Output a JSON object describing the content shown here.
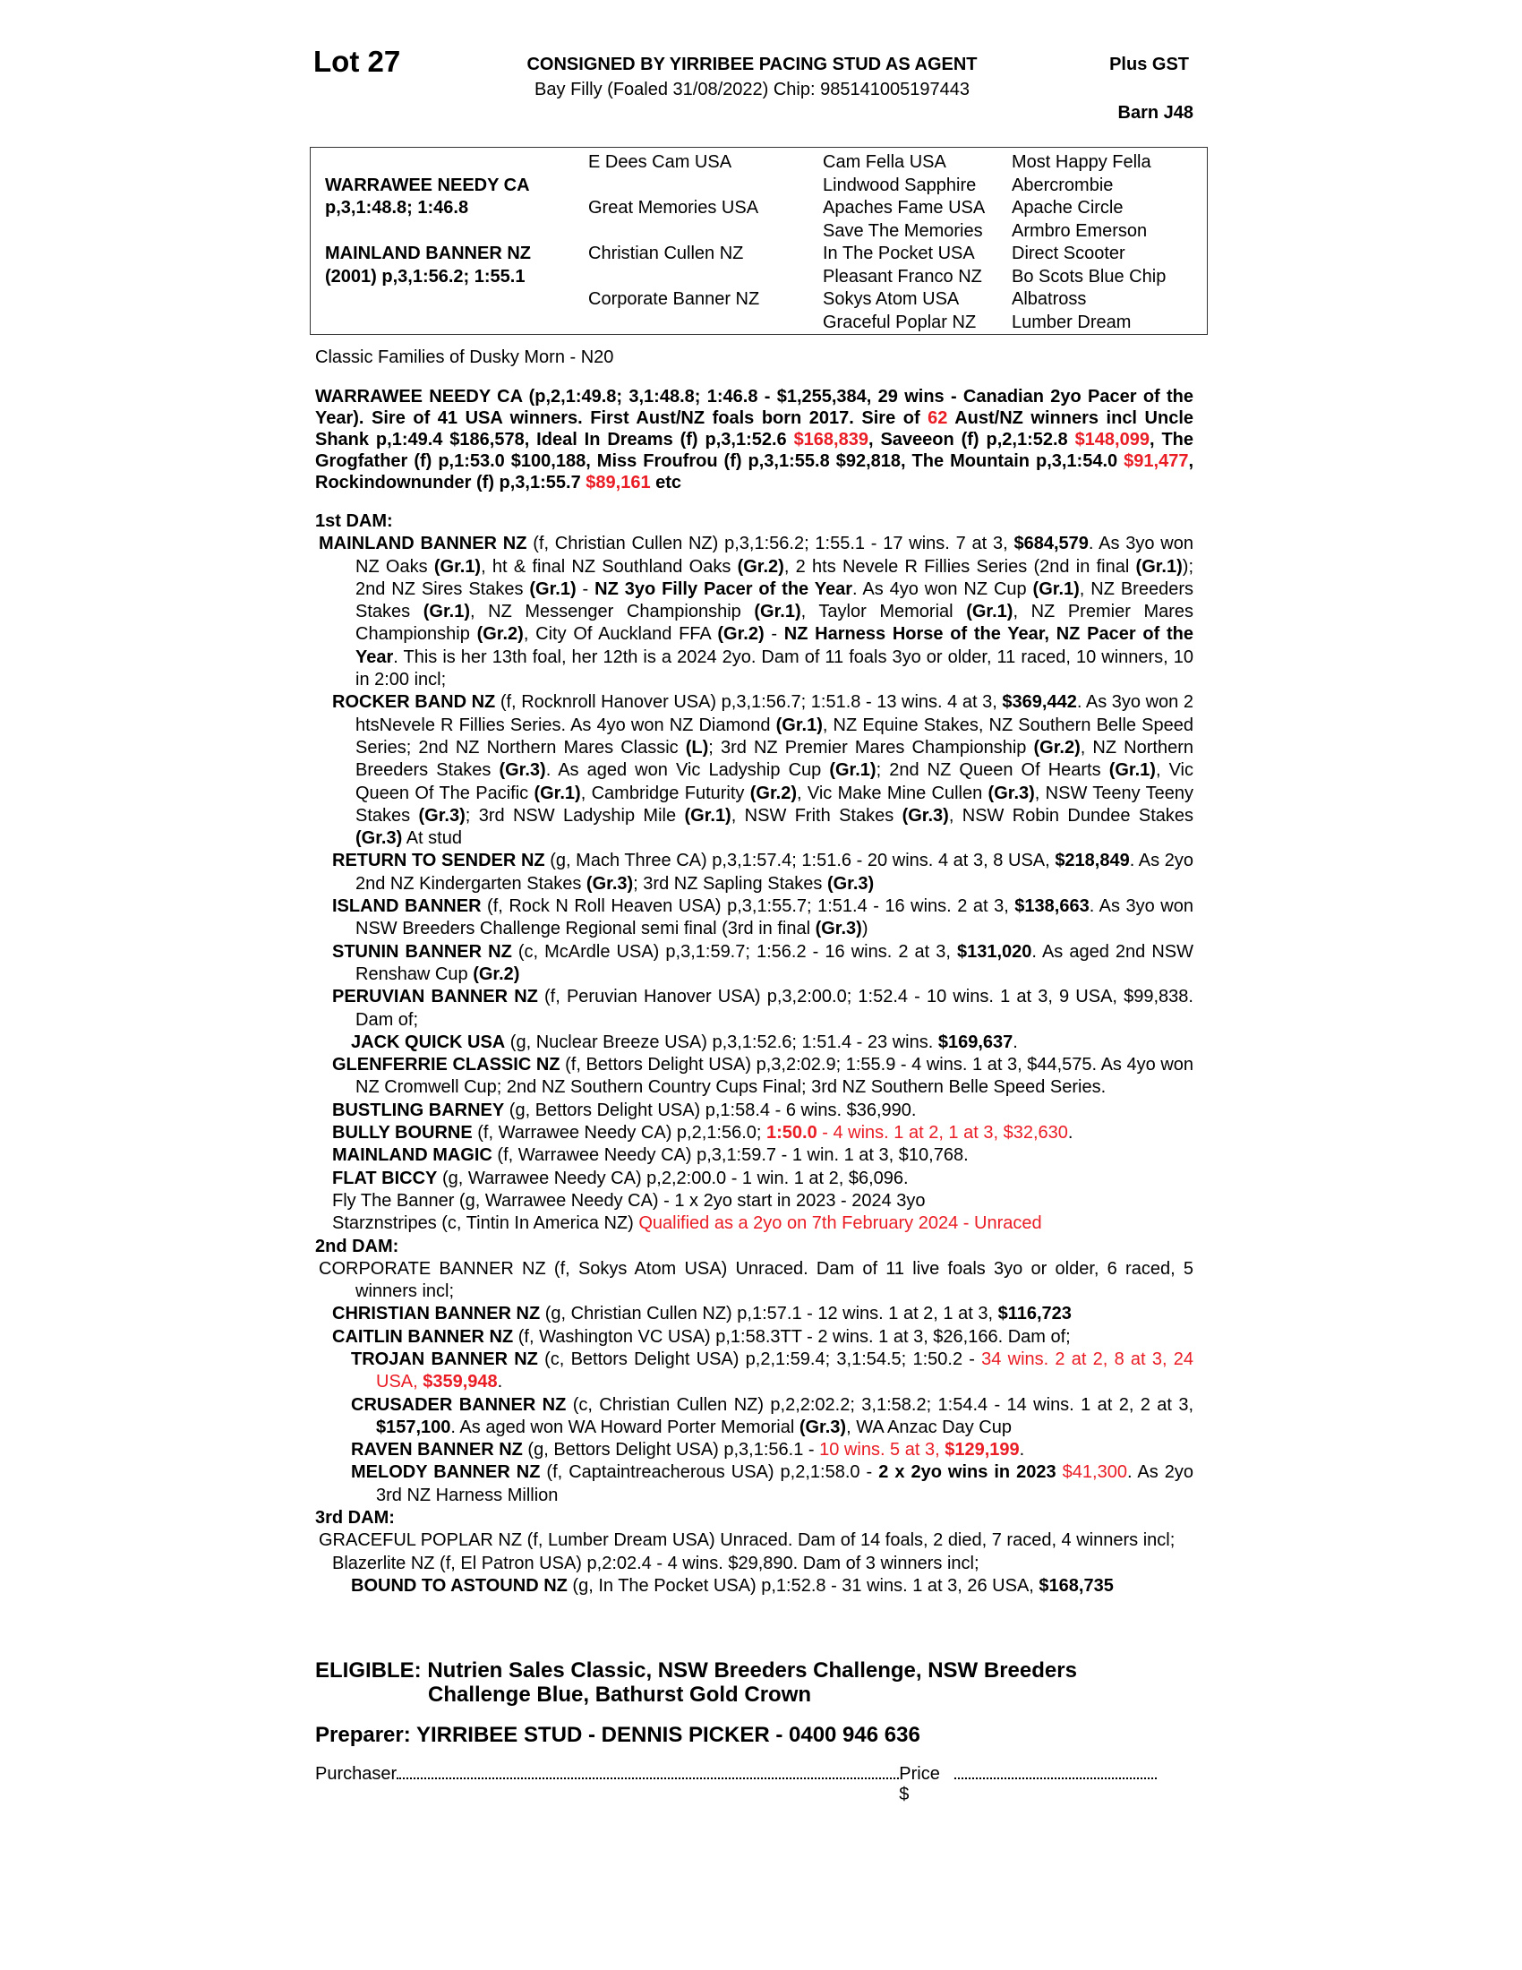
{
  "header": {
    "lot": "Lot 27",
    "consignor": "CONSIGNED BY YIRRIBEE PACING STUD AS AGENT",
    "description": "Bay Filly (Foaled  31/08/2022) Chip: 985141005197443",
    "tax_note": "Plus GST",
    "barn": "Barn J48"
  },
  "pedigree": {
    "sire": {
      "name": "WARRAWEE NEEDY CA",
      "record": "p,3,1:48.8; 1:46.8"
    },
    "dam": {
      "name": "MAINLAND BANNER NZ",
      "record": "(2001) p,3,1:56.2; 1:55.1"
    },
    "gen2": [
      "E Dees Cam USA",
      "Great Memories USA",
      "Christian Cullen NZ",
      "Corporate Banner NZ"
    ],
    "gen3": [
      "Cam Fella USA",
      "Lindwood Sapphire",
      "Apaches Fame USA",
      "Save The Memories",
      "In The Pocket USA",
      "Pleasant Franco NZ",
      "Sokys Atom USA",
      "Graceful Poplar NZ"
    ],
    "gen4": [
      "Most Happy Fella",
      "Abercrombie",
      "Apache Circle",
      "Armbro Emerson",
      "Direct Scooter",
      "Bo Scots Blue Chip",
      "Albatross",
      "Lumber Dream"
    ]
  },
  "family": "Classic Families of Dusky Morn - N20",
  "colors": {
    "highlight": "#ea1c24",
    "text": "#000000"
  },
  "sire_notes": [
    {
      "t": "WARRAWEE NEEDY CA (p,2,1:49.8; 3,1:48.8; 1:46.8 - $1,255,384, 29 wins - Canadian 2yo Pacer of the Year). Sire of 41 USA winners. First Aust/NZ foals born 2017. Sire of ",
      "s": ""
    },
    {
      "t": "62",
      "s": "r"
    },
    {
      "t": " Aust/NZ winners incl Uncle Shank p,1:49.4 $186,578, Ideal In Dreams (f) p,3,1:52.6 ",
      "s": ""
    },
    {
      "t": "$168,839",
      "s": "r"
    },
    {
      "t": ", Saveeon (f) p,2,1:52.8 ",
      "s": ""
    },
    {
      "t": "$148,099",
      "s": "r"
    },
    {
      "t": ", The Grogfather (f) p,1:53.0 $100,188, Miss Froufrou (f) p,3,1:55.8 $92,818, The Mountain p,3,1:54.0 ",
      "s": ""
    },
    {
      "t": "$91,477",
      "s": "r"
    },
    {
      "t": ", Rockindownunder (f) p,3,1:55.7 ",
      "s": ""
    },
    {
      "t": "$89,161",
      "s": "r"
    },
    {
      "t": " etc",
      "s": ""
    }
  ],
  "dams": [
    {
      "heading": "1st DAM:",
      "entries": [
        {
          "level": 0,
          "segments": [
            {
              "t": "MAINLAND BANNER NZ",
              "s": "b"
            },
            {
              "t": " (f, Christian Cullen NZ) p,3,1:56.2; 1:55.1 - 17 wins. 7 at 3, ",
              "s": ""
            },
            {
              "t": "$684,579",
              "s": "b"
            },
            {
              "t": ". As 3yo won NZ Oaks ",
              "s": ""
            },
            {
              "t": "(Gr.1)",
              "s": "b"
            },
            {
              "t": ", ht & final NZ Southland Oaks ",
              "s": ""
            },
            {
              "t": "(Gr.2)",
              "s": "b"
            },
            {
              "t": ", 2 hts Nevele R Fillies Series (2nd in final ",
              "s": ""
            },
            {
              "t": "(Gr.1)",
              "s": "b"
            },
            {
              "t": "); 2nd NZ Sires Stakes ",
              "s": ""
            },
            {
              "t": "(Gr.1)",
              "s": "b"
            },
            {
              "t": " - ",
              "s": ""
            },
            {
              "t": "NZ 3yo Filly Pacer of the Year",
              "s": "b"
            },
            {
              "t": ". As 4yo won NZ Cup ",
              "s": ""
            },
            {
              "t": "(Gr.1)",
              "s": "b"
            },
            {
              "t": ", NZ Breeders Stakes ",
              "s": ""
            },
            {
              "t": "(Gr.1)",
              "s": "b"
            },
            {
              "t": ", NZ Messenger Championship ",
              "s": ""
            },
            {
              "t": "(Gr.1)",
              "s": "b"
            },
            {
              "t": ", Taylor Memorial ",
              "s": ""
            },
            {
              "t": "(Gr.1)",
              "s": "b"
            },
            {
              "t": ", NZ Premier Mares Championship ",
              "s": ""
            },
            {
              "t": "(Gr.2)",
              "s": "b"
            },
            {
              "t": ", City Of Auckland FFA ",
              "s": ""
            },
            {
              "t": "(Gr.2)",
              "s": "b"
            },
            {
              "t": " - ",
              "s": ""
            },
            {
              "t": "NZ Harness Horse of the Year, NZ Pacer of the Year",
              "s": "b"
            },
            {
              "t": ". This is her 13th foal, her 12th is a 2024 2yo. Dam of 11 foals 3yo or older, 11 raced, 10 winners, 10 in 2:00 incl;",
              "s": ""
            }
          ]
        },
        {
          "level": 1,
          "segments": [
            {
              "t": "ROCKER BAND NZ",
              "s": "b"
            },
            {
              "t": " (f, Rocknroll Hanover USA) p,3,1:56.7; 1:51.8 - 13 wins. 4 at 3, ",
              "s": ""
            },
            {
              "t": "$369,442",
              "s": "b"
            },
            {
              "t": ". As 3yo won 2 htsNevele R Fillies Series. As 4yo won NZ Diamond ",
              "s": ""
            },
            {
              "t": "(Gr.1)",
              "s": "b"
            },
            {
              "t": ", NZ Equine Stakes, NZ Southern Belle Speed Series; 2nd NZ Northern Mares Classic ",
              "s": ""
            },
            {
              "t": "(L)",
              "s": "b"
            },
            {
              "t": "; 3rd NZ Premier Mares Championship ",
              "s": ""
            },
            {
              "t": "(Gr.2)",
              "s": "b"
            },
            {
              "t": ", NZ Northern Breeders Stakes ",
              "s": ""
            },
            {
              "t": "(Gr.3)",
              "s": "b"
            },
            {
              "t": ". As aged won Vic Ladyship Cup ",
              "s": ""
            },
            {
              "t": "(Gr.1)",
              "s": "b"
            },
            {
              "t": "; 2nd NZ Queen Of Hearts ",
              "s": ""
            },
            {
              "t": "(Gr.1)",
              "s": "b"
            },
            {
              "t": ", Vic Queen Of The Pacific ",
              "s": ""
            },
            {
              "t": "(Gr.1)",
              "s": "b"
            },
            {
              "t": ", Cambridge Futurity ",
              "s": ""
            },
            {
              "t": "(Gr.2)",
              "s": "b"
            },
            {
              "t": ", Vic Make Mine Cullen ",
              "s": ""
            },
            {
              "t": "(Gr.3)",
              "s": "b"
            },
            {
              "t": ", NSW Teeny Teeny Stakes ",
              "s": ""
            },
            {
              "t": "(Gr.3)",
              "s": "b"
            },
            {
              "t": "; 3rd NSW Ladyship Mile ",
              "s": ""
            },
            {
              "t": "(Gr.1)",
              "s": "b"
            },
            {
              "t": ", NSW Frith Stakes ",
              "s": ""
            },
            {
              "t": "(Gr.3)",
              "s": "b"
            },
            {
              "t": ", NSW Robin Dundee Stakes ",
              "s": ""
            },
            {
              "t": "(Gr.3)",
              "s": "b"
            },
            {
              "t": " At stud",
              "s": ""
            }
          ]
        },
        {
          "level": 1,
          "segments": [
            {
              "t": "RETURN TO SENDER NZ",
              "s": "b"
            },
            {
              "t": " (g, Mach Three CA) p,3,1:57.4; 1:51.6 - 20 wins. 4 at 3, 8 USA, ",
              "s": ""
            },
            {
              "t": "$218,849",
              "s": "b"
            },
            {
              "t": ". As 2yo 2nd NZ Kindergarten Stakes ",
              "s": ""
            },
            {
              "t": "(Gr.3)",
              "s": "b"
            },
            {
              "t": "; 3rd NZ Sapling Stakes ",
              "s": ""
            },
            {
              "t": "(Gr.3)",
              "s": "b"
            }
          ]
        },
        {
          "level": 1,
          "segments": [
            {
              "t": "ISLAND BANNER",
              "s": "b"
            },
            {
              "t": " (f, Rock N Roll Heaven USA) p,3,1:55.7; 1:51.4 - 16 wins. 2 at 3, ",
              "s": ""
            },
            {
              "t": "$138,663",
              "s": "b"
            },
            {
              "t": ". As 3yo won NSW Breeders Challenge Regional semi final (3rd in final ",
              "s": ""
            },
            {
              "t": "(Gr.3)",
              "s": "b"
            },
            {
              "t": ")",
              "s": ""
            }
          ]
        },
        {
          "level": 1,
          "segments": [
            {
              "t": "STUNIN BANNER NZ",
              "s": "b"
            },
            {
              "t": " (c, McArdle USA) p,3,1:59.7; 1:56.2 - 16 wins. 2 at 3, ",
              "s": ""
            },
            {
              "t": "$131,020",
              "s": "b"
            },
            {
              "t": ". As aged 2nd NSW Renshaw Cup ",
              "s": ""
            },
            {
              "t": "(Gr.2)",
              "s": "b"
            }
          ]
        },
        {
          "level": 1,
          "segments": [
            {
              "t": "PERUVIAN BANNER NZ",
              "s": "b"
            },
            {
              "t": " (f, Peruvian Hanover USA) p,3,2:00.0; 1:52.4 - 10 wins. 1 at 3, 9 USA, $99,838. Dam of;",
              "s": ""
            }
          ]
        },
        {
          "level": 2,
          "segments": [
            {
              "t": "JACK QUICK USA",
              "s": "b"
            },
            {
              "t": " (g, Nuclear Breeze USA) p,3,1:52.6; 1:51.4 - 23 wins. ",
              "s": ""
            },
            {
              "t": "$169,637",
              "s": "b"
            },
            {
              "t": ".",
              "s": ""
            }
          ]
        },
        {
          "level": 1,
          "segments": [
            {
              "t": "GLENFERRIE CLASSIC NZ",
              "s": "b"
            },
            {
              "t": " (f, Bettors Delight USA) p,3,2:02.9; 1:55.9 - 4 wins. 1 at 3, $44,575. As 4yo won NZ Cromwell Cup; 2nd NZ Southern Country Cups Final; 3rd NZ Southern Belle Speed Series.",
              "s": ""
            }
          ]
        },
        {
          "level": 1,
          "segments": [
            {
              "t": "BUSTLING BARNEY",
              "s": "b"
            },
            {
              "t": " (g, Bettors Delight USA) p,1:58.4 - 6 wins. $36,990.",
              "s": ""
            }
          ]
        },
        {
          "level": 1,
          "segments": [
            {
              "t": "BULLY BOURNE",
              "s": "b"
            },
            {
              "t": " (f, Warrawee Needy CA) p,2,1:56.0; ",
              "s": ""
            },
            {
              "t": "1:50.0",
              "s": "br"
            },
            {
              "t": " - 4 wins. 1 at 2, 1 at 3, $32,630",
              "s": "r"
            },
            {
              "t": ".",
              "s": ""
            }
          ]
        },
        {
          "level": 1,
          "segments": [
            {
              "t": "MAINLAND MAGIC",
              "s": "b"
            },
            {
              "t": " (f, Warrawee Needy CA) p,3,1:59.7 - 1 win. 1 at 3, $10,768.",
              "s": ""
            }
          ]
        },
        {
          "level": 1,
          "segments": [
            {
              "t": "FLAT BICCY",
              "s": "b"
            },
            {
              "t": " (g, Warrawee Needy CA) p,2,2:00.0 - 1 win. 1 at 2, $6,096.",
              "s": ""
            }
          ]
        },
        {
          "level": 1,
          "segments": [
            {
              "t": "Fly The Banner (g, Warrawee Needy CA) - 1 x 2yo start in 2023 - 2024 3yo",
              "s": ""
            }
          ]
        },
        {
          "level": 1,
          "segments": [
            {
              "t": "Starznstripes (c, Tintin In America NZ) ",
              "s": ""
            },
            {
              "t": "Qualified as a 2yo on 7th February 2024 - Unraced",
              "s": "r"
            }
          ]
        }
      ]
    },
    {
      "heading": "2nd DAM:",
      "entries": [
        {
          "level": 0,
          "segments": [
            {
              "t": "CORPORATE BANNER NZ (f, Sokys Atom USA) Unraced. Dam of 11 live foals 3yo or older, 6 raced, 5 winners incl;",
              "s": ""
            }
          ]
        },
        {
          "level": 1,
          "segments": [
            {
              "t": "CHRISTIAN BANNER NZ",
              "s": "b"
            },
            {
              "t": " (g, Christian Cullen NZ) p,1:57.1 - 12 wins. 1 at 2, 1 at 3, ",
              "s": ""
            },
            {
              "t": "$116,723",
              "s": "b"
            }
          ]
        },
        {
          "level": 1,
          "segments": [
            {
              "t": "CAITLIN BANNER NZ",
              "s": "b"
            },
            {
              "t": " (f, Washington VC USA) p,1:58.3TT - 2 wins. 1 at 3, $26,166. Dam of;",
              "s": ""
            }
          ]
        },
        {
          "level": 2,
          "segments": [
            {
              "t": "TROJAN BANNER NZ",
              "s": "b"
            },
            {
              "t": " (c, Bettors Delight USA) p,2,1:59.4; 3,1:54.5; 1:50.2 - ",
              "s": ""
            },
            {
              "t": "34 wins. 2 at 2, 8 at 3, 24 USA, ",
              "s": "r"
            },
            {
              "t": "$359,948",
              "s": "br"
            },
            {
              "t": ".",
              "s": ""
            }
          ]
        },
        {
          "level": 2,
          "segments": [
            {
              "t": "CRUSADER BANNER NZ",
              "s": "b"
            },
            {
              "t": " (c, Christian Cullen NZ) p,2,2:02.2; 3,1:58.2; 1:54.4 - 14 wins. 1 at 2, 2 at 3, ",
              "s": ""
            },
            {
              "t": "$157,100",
              "s": "b"
            },
            {
              "t": ". As aged won WA Howard Porter Memorial ",
              "s": ""
            },
            {
              "t": "(Gr.3)",
              "s": "b"
            },
            {
              "t": ", WA Anzac Day Cup",
              "s": ""
            }
          ]
        },
        {
          "level": 2,
          "segments": [
            {
              "t": "RAVEN BANNER NZ",
              "s": "b"
            },
            {
              "t": " (g, Bettors Delight USA) p,3,1:56.1 - ",
              "s": ""
            },
            {
              "t": "10 wins. 5 at 3, ",
              "s": "r"
            },
            {
              "t": "$129,199",
              "s": "br"
            },
            {
              "t": ".",
              "s": ""
            }
          ]
        },
        {
          "level": 2,
          "segments": [
            {
              "t": "MELODY BANNER NZ",
              "s": "b"
            },
            {
              "t": " (f, Captaintreacherous USA) p,2,1:58.0 - ",
              "s": ""
            },
            {
              "t": "2 x 2yo wins in 2023",
              "s": "b"
            },
            {
              "t": " ",
              "s": ""
            },
            {
              "t": "$41,300",
              "s": "r"
            },
            {
              "t": ". As 2yo 3rd NZ Harness Million",
              "s": ""
            }
          ]
        }
      ]
    },
    {
      "heading": "3rd DAM:",
      "entries": [
        {
          "level": 0,
          "segments": [
            {
              "t": "GRACEFUL POPLAR NZ (f, Lumber Dream USA) Unraced. Dam of 14 foals, 2 died, 7 raced, 4 winners incl;",
              "s": ""
            }
          ]
        },
        {
          "level": 1,
          "segments": [
            {
              "t": "Blazerlite NZ (f, El Patron USA) p,2:02.4 - 4 wins. $29,890. Dam of 3 winners incl;",
              "s": ""
            }
          ]
        },
        {
          "level": 2,
          "segments": [
            {
              "t": "BOUND TO ASTOUND NZ",
              "s": "b"
            },
            {
              "t": " (g, In The Pocket USA) p,1:52.8 - 31 wins. 1 at 3, 26 USA, ",
              "s": ""
            },
            {
              "t": "$168,735",
              "s": "b"
            }
          ]
        }
      ]
    }
  ],
  "eligible": {
    "label": "ELIGIBLE:",
    "text": " Nutrien Sales Classic, NSW Breeders Challenge, NSW Breeders Challenge Blue, Bathurst Gold Crown"
  },
  "preparer": "Preparer: YIRRIBEE STUD - DENNIS PICKER - 0400 946 636",
  "purchase": {
    "purchaser_label": "Purchaser",
    "price_label": "Price $"
  }
}
